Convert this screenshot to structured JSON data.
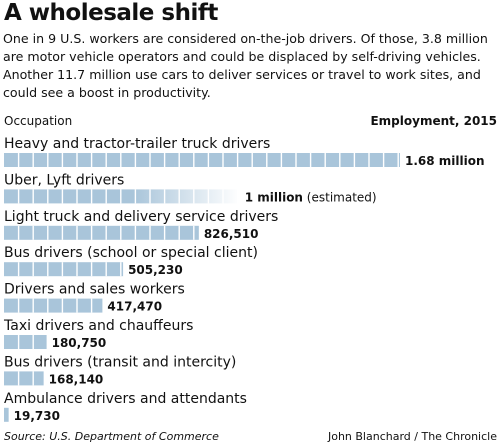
{
  "title": "A wholesale shift",
  "intro": "One in 9 U.S. workers are considered on-the-job drivers. Of those, 3.8 million are motor vehicle operators and could be displaced by self-driving vehicles. Another 11.7 million use cars to deliver services or travel to work sites, and could see a boost in productivity.",
  "column_headers": {
    "left": "Occupation",
    "right": "Employment, 2015"
  },
  "footer": {
    "source": "Source: U.S. Department of Commerce",
    "credit": "John Blanchard / The Chronicle"
  },
  "colors": {
    "bar_fill": "#a9c5da",
    "bar_divider": "#ffffff",
    "estimate_fade": "#ffffff"
  },
  "chart_data": {
    "type": "bar",
    "orientation": "horizontal",
    "categories": [
      "Heavy and tractor-trailer truck drivers",
      "Uber, Lyft drivers",
      "Light truck and delivery service drivers",
      "Bus drivers (school or special client)",
      "Drivers and sales workers",
      "Taxi drivers and chauffeurs",
      "Bus drivers (transit and intercity)",
      "Ambulance drivers and attendants"
    ],
    "values": [
      1680000,
      1000000,
      826510,
      505230,
      417470,
      180750,
      168140,
      19730
    ],
    "value_labels": [
      "1.68 million",
      "1 million",
      "826,510",
      "505,230",
      "417,470",
      "180,750",
      "168,140",
      "19,730"
    ],
    "value_notes": [
      "",
      "(estimated)",
      "",
      "",
      "",
      "",
      "",
      ""
    ],
    "estimated": [
      false,
      true,
      false,
      false,
      false,
      false,
      false,
      false
    ],
    "grid": false,
    "legend": "none"
  }
}
